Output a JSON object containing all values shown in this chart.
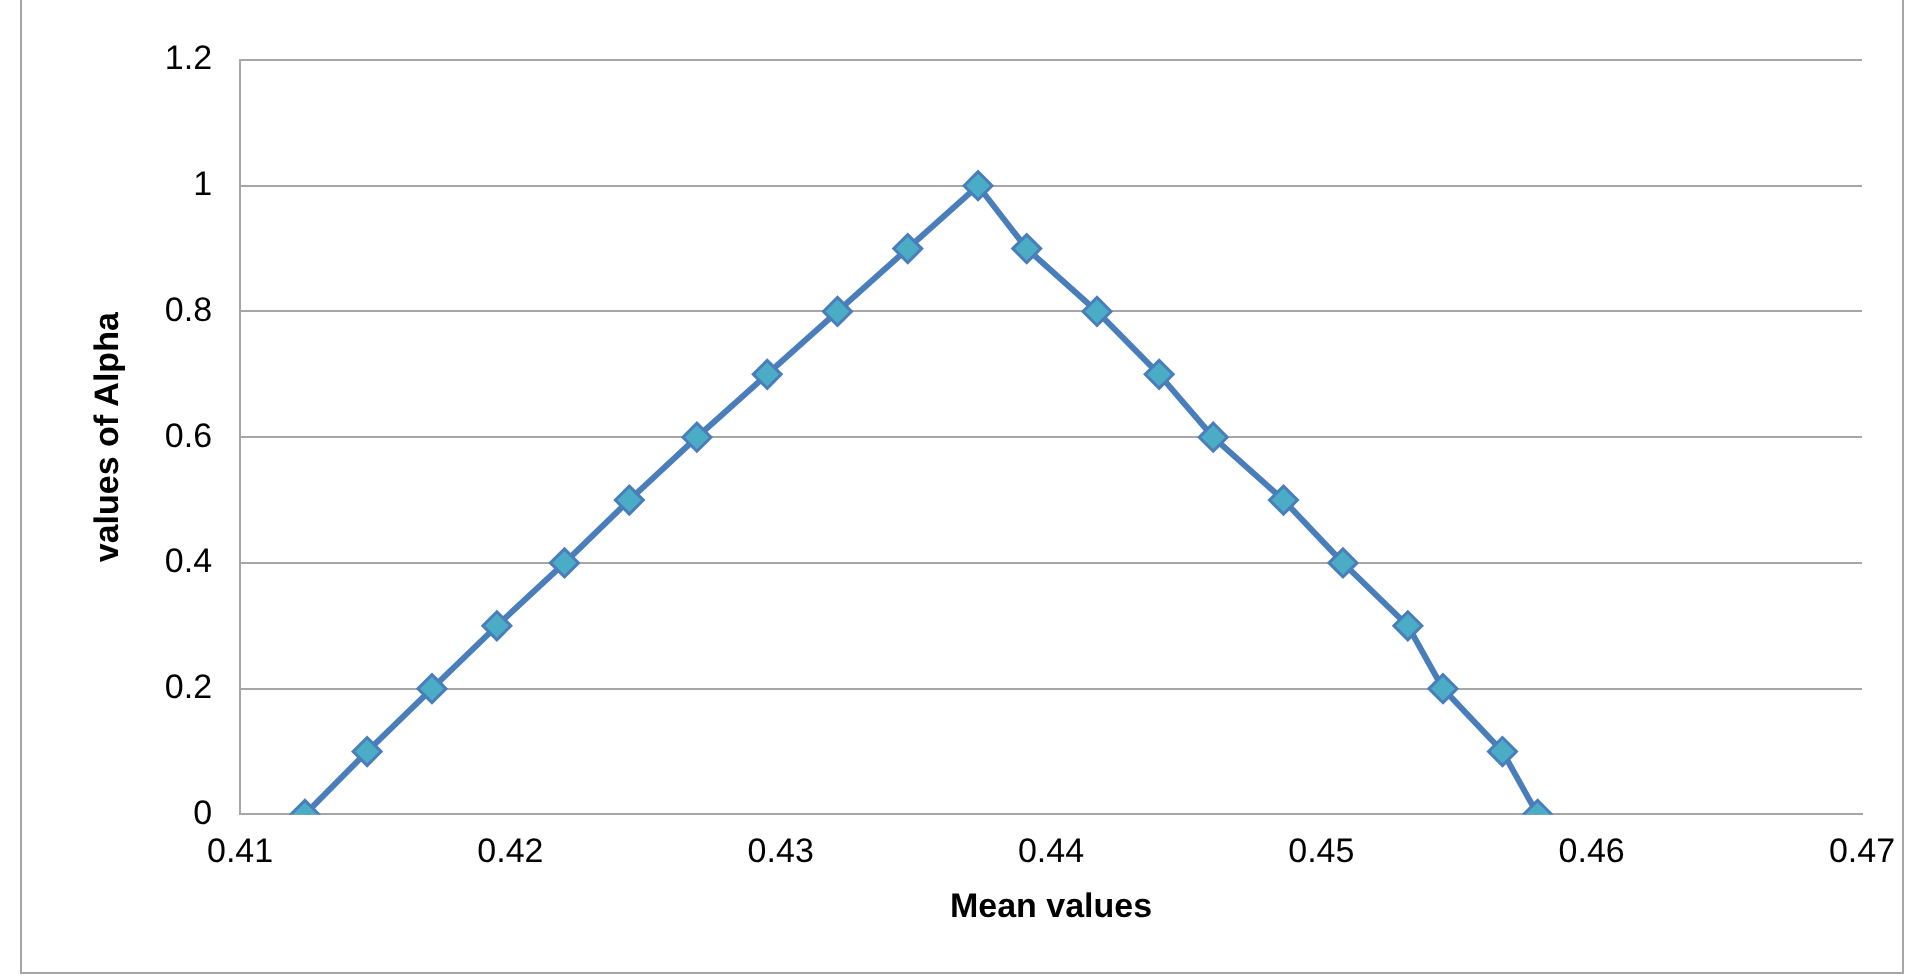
{
  "chart_data": {
    "type": "line",
    "xlabel": "Mean values",
    "ylabel": "values of Alpha",
    "x": [
      0.4124,
      0.4147,
      0.4171,
      0.4195,
      0.422,
      0.4244,
      0.4269,
      0.4295,
      0.4321,
      0.4347,
      0.4373,
      0.4391,
      0.4417,
      0.444,
      0.446,
      0.4486,
      0.4508,
      0.4532,
      0.4545,
      0.4567,
      0.458
    ],
    "series": [
      {
        "color": "#4a7ebb",
        "values": [
          0,
          0.1,
          0.2,
          0.3,
          0.4,
          0.5,
          0.6,
          0.7,
          0.8,
          0.9,
          1,
          0.9,
          0.8,
          0.7,
          0.6,
          0.5,
          0.4,
          0.3,
          0.2,
          0.1,
          0
        ]
      }
    ],
    "xlim": [
      0.41,
      0.47
    ],
    "xticks": [
      0.41,
      0.42,
      0.43,
      0.44,
      0.45,
      0.46,
      0.47
    ],
    "ylim": [
      0,
      1.2
    ],
    "yticks": [
      0,
      0.2,
      0.4,
      0.6,
      0.8,
      1,
      1.2
    ],
    "grid": "y",
    "legend": false,
    "marker": "diamond",
    "line_style": "solid"
  }
}
